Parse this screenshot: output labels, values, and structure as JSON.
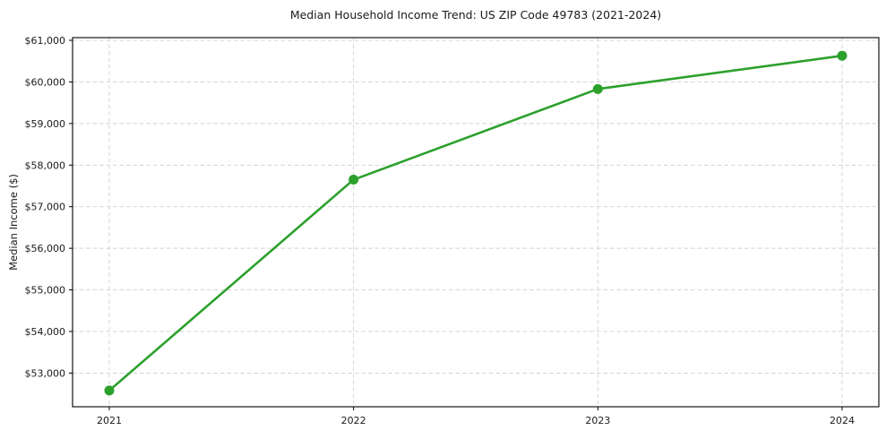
{
  "chart_data": {
    "type": "line",
    "title": "Median Household Income Trend: US ZIP Code 49783 (2021-2024)",
    "ylabel": "Median Income ($)",
    "xlabel": "",
    "categories": [
      "2021",
      "2022",
      "2023",
      "2024"
    ],
    "values": [
      52580,
      57650,
      59830,
      60630
    ],
    "ytick_values": [
      53000,
      54000,
      55000,
      56000,
      57000,
      58000,
      59000,
      60000,
      61000
    ],
    "ytick_labels": [
      "$53,000",
      "$54,000",
      "$55,000",
      "$56,000",
      "$57,000",
      "$58,000",
      "$59,000",
      "$60,000",
      "$61,000"
    ],
    "ylim": [
      52190,
      61065
    ],
    "grid": true,
    "grid_style": "dashed",
    "legend": false,
    "marker": "circle",
    "colors": {
      "line": "#2ca02c",
      "marker": "#2ca02c",
      "grid": "#d0d0d0",
      "axis": "#000000",
      "text": "#1a1a1a",
      "background": "#ffffff"
    }
  }
}
